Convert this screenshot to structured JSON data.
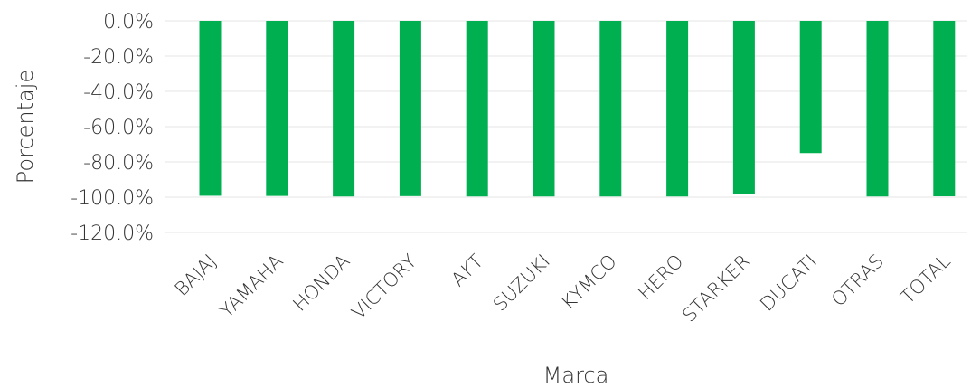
{
  "chart_data": {
    "type": "bar",
    "title": "",
    "xlabel": "Marca",
    "ylabel": "Porcentaje",
    "categories": [
      "BAJAJ",
      "YAMAHA",
      "HONDA",
      "VICTORY",
      "AKT",
      "SUZUKI",
      "KYMCO",
      "HERO",
      "STARKER",
      "DUCATI",
      "OTRAS",
      "TOTAL"
    ],
    "values": [
      -99.2,
      -99.3,
      -99.6,
      -99.4,
      -99.6,
      -99.6,
      -99.6,
      -99.6,
      -98.1,
      -75.0,
      -99.6,
      -99.5
    ],
    "ylim": [
      -120,
      0
    ],
    "yticks": [
      0,
      -20,
      -40,
      -60,
      -80,
      -100,
      -120
    ],
    "ytick_labels": [
      "0.0%",
      "-20.0%",
      "-40.0%",
      "-60.0%",
      "-80.0%",
      "-100.0%",
      "-120.0%"
    ],
    "grid": true,
    "bar_color": "#00b050"
  }
}
